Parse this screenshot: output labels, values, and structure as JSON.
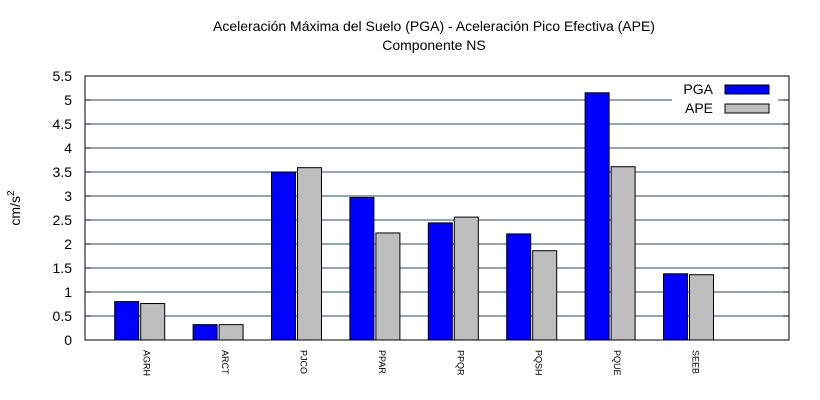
{
  "chart_data": {
    "type": "bar",
    "title": "Aceleración Máxima del Suelo (PGA) -  Aceleración Pico Efectiva (APE)",
    "subtitle": "Componente NS",
    "ylabel": "cm/s",
    "ylabel_sup": "2",
    "xlabel": "",
    "ylim": [
      0,
      5.5
    ],
    "yticks": [
      0,
      0.5,
      1,
      1.5,
      2,
      2.5,
      3,
      3.5,
      4,
      4.5,
      5,
      5.5
    ],
    "ytick_labels": [
      "0",
      "0.5",
      "1",
      "1.5",
      "2",
      "2.5",
      "3",
      "3.5",
      "4",
      "4.5",
      "5",
      "5.5"
    ],
    "grid": true,
    "legend_position": "top-right",
    "categories": [
      "AGRH",
      "ARCT",
      "PJCO",
      "PPAR",
      "PPQR",
      "PQSH",
      "PQUE",
      "SEEB"
    ],
    "series": [
      {
        "name": "PGA",
        "color": "#0000ff",
        "values": [
          0.8,
          0.32,
          3.5,
          2.97,
          2.44,
          2.21,
          5.15,
          1.38
        ]
      },
      {
        "name": "APE",
        "color": "#bebebe",
        "values": [
          0.76,
          0.32,
          3.59,
          2.23,
          2.56,
          1.86,
          3.61,
          1.36
        ]
      }
    ],
    "grid_color": "#1f4e6e"
  }
}
